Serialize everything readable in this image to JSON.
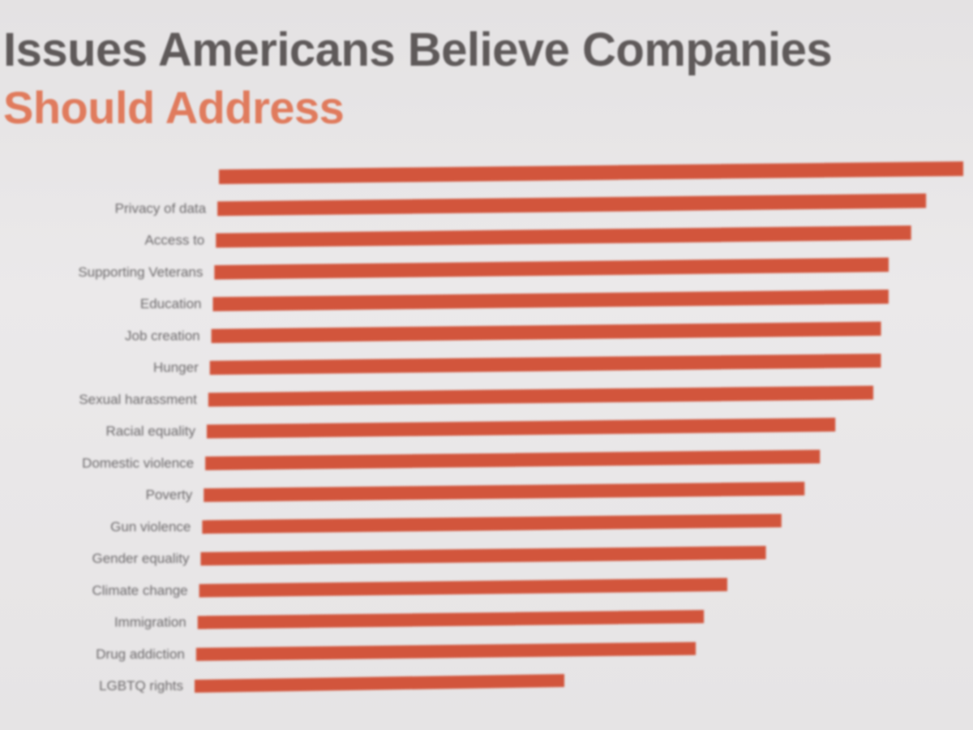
{
  "title": {
    "line1": "Issues Americans Believe Companies",
    "line2": "Should Address"
  },
  "colors": {
    "bar": "#d2553c",
    "title_primary": "#5f5a5a",
    "title_accent": "#e07b5d",
    "background": "#e8e6e7"
  },
  "chart_data": {
    "type": "bar",
    "orientation": "horizontal",
    "xlim": [
      0,
      100
    ],
    "grid": false,
    "legend": "none",
    "categories": [
      "",
      "Privacy of data",
      "Access to",
      "Supporting Veterans",
      "Education",
      "Job creation",
      "Hunger",
      "Sexual harassment",
      "Racial equality",
      "Domestic violence",
      "Poverty",
      "Gun violence",
      "Gender equality",
      "Climate change",
      "Immigration",
      "Drug addiction",
      "LGBTQ rights"
    ],
    "values": [
      100,
      95,
      93,
      90,
      90,
      89,
      89,
      88,
      83,
      81,
      79,
      76,
      74,
      69,
      66,
      65,
      48
    ],
    "value_labels": [
      "",
      "",
      "",
      "",
      "",
      "",
      "",
      "",
      "",
      "",
      "",
      "",
      "",
      "",
      "",
      "",
      ""
    ]
  }
}
